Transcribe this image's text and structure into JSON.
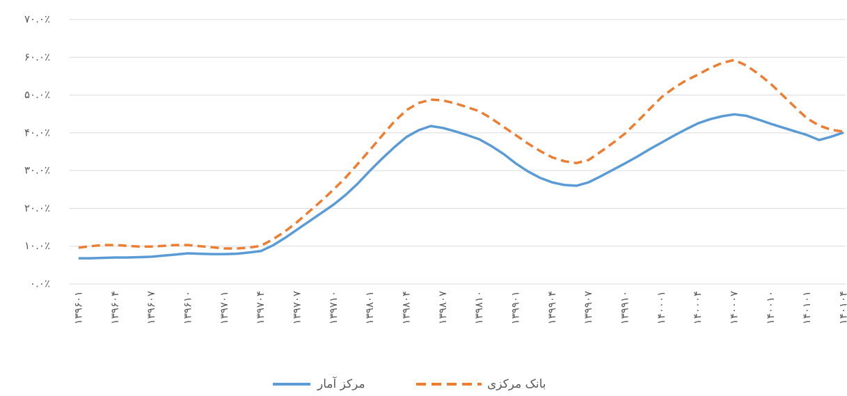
{
  "chart_data": {
    "type": "line",
    "categories": [
      "۱۳۹۶۰۱",
      null,
      null,
      "۱۳۹۶۰۴",
      null,
      null,
      "۱۳۹۶۰۷",
      null,
      null,
      "۱۳۹۶۱۰",
      null,
      null,
      "۱۳۹۷۰۱",
      null,
      null,
      "۱۳۹۷۰۴",
      null,
      null,
      "۱۳۹۷۰۷",
      null,
      null,
      "۱۳۹۷۱۰",
      null,
      null,
      "۱۳۹۸۰۱",
      null,
      null,
      "۱۳۹۸۰۴",
      null,
      null,
      "۱۳۹۸۰۷",
      null,
      null,
      "۱۳۹۸۱۰",
      null,
      null,
      "۱۳۹۹۰۱",
      null,
      null,
      "۱۳۹۹۰۴",
      null,
      null,
      "۱۳۹۹۰۷",
      null,
      null,
      "۱۳۹۹۱۰",
      null,
      null,
      "۱۴۰۰۰۱",
      null,
      null,
      "۱۴۰۰۰۴",
      null,
      null,
      "۱۴۰۰۰۷",
      null,
      null,
      "۱۴۰۰۱۰",
      null,
      null,
      "۱۴۰۱۰۱",
      null,
      null,
      "۱۴۰۱۰۴"
    ],
    "series": [
      {
        "name": "مرکز آمار",
        "color": "#5b9bd5",
        "dash": false,
        "values": [
          6.8,
          6.8,
          6.9,
          7.0,
          7.0,
          7.1,
          7.2,
          7.5,
          7.8,
          8.1,
          8.0,
          7.9,
          7.9,
          8.0,
          8.3,
          8.7,
          10.2,
          12.2,
          14.4,
          16.6,
          18.8,
          21.0,
          23.6,
          26.6,
          30.0,
          33.2,
          36.2,
          38.9,
          40.7,
          41.8,
          41.3,
          40.4,
          39.4,
          38.3,
          36.5,
          34.4,
          31.9,
          29.8,
          28.1,
          26.9,
          26.2,
          26.0,
          26.9,
          28.5,
          30.2,
          31.9,
          33.7,
          35.6,
          37.4,
          39.2,
          40.9,
          42.5,
          43.6,
          44.4,
          44.9,
          44.5,
          43.5,
          42.4,
          41.4,
          40.4,
          39.4,
          38.1,
          39.0,
          40.1
        ]
      },
      {
        "name": "بانک مرکزی",
        "color": "#ed7d31",
        "dash": true,
        "values": [
          9.6,
          10.0,
          10.3,
          10.3,
          10.1,
          9.9,
          9.9,
          10.1,
          10.3,
          10.3,
          10.0,
          9.7,
          9.4,
          9.4,
          9.6,
          10.1,
          11.8,
          13.9,
          16.4,
          19.2,
          22.0,
          25.0,
          28.2,
          31.8,
          35.5,
          39.3,
          43.0,
          46.0,
          47.9,
          48.8,
          48.6,
          47.8,
          46.8,
          45.7,
          43.8,
          41.6,
          39.4,
          37.2,
          35.2,
          33.5,
          32.5,
          32.0,
          32.8,
          35.0,
          37.3,
          39.8,
          42.9,
          46.2,
          49.4,
          51.8,
          53.8,
          55.4,
          57.1,
          58.5,
          59.3,
          57.8,
          55.6,
          53.0,
          49.9,
          46.8,
          43.8,
          41.9,
          40.8,
          40.3
        ]
      }
    ],
    "ylim": [
      0,
      70
    ],
    "yticks": [
      {
        "value": 0,
        "label": "۰.۰٪"
      },
      {
        "value": 10,
        "label": "۱۰.۰٪"
      },
      {
        "value": 20,
        "label": "۲۰.۰٪"
      },
      {
        "value": 30,
        "label": "۳۰.۰٪"
      },
      {
        "value": 40,
        "label": "۴۰.۰٪"
      },
      {
        "value": 50,
        "label": "۵۰.۰٪"
      },
      {
        "value": 60,
        "label": "۶۰.۰٪"
      },
      {
        "value": 70,
        "label": "۷۰.۰٪"
      }
    ],
    "grid": true
  }
}
